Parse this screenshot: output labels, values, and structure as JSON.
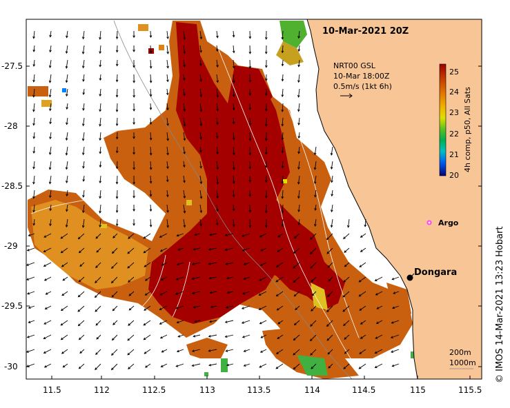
{
  "map": {
    "title": "10-Mar-2021 20Z",
    "current_info": [
      "NRT00 GSL",
      "10-Mar 18:00Z",
      "0.5m/s (1kt 6h)"
    ],
    "colorbar": {
      "label": "4h comp, p50, All Sats",
      "ticks": [
        "25",
        "24",
        "23",
        "22",
        "21",
        "20"
      ],
      "min": 20,
      "max": 25.4,
      "colors": [
        "#06007a",
        "#0020d0",
        "#0080ff",
        "#00c0c0",
        "#00b050",
        "#30c030",
        "#90d000",
        "#e0e000",
        "#f0b000",
        "#e07000",
        "#c03800",
        "#a00000"
      ]
    },
    "x_ticks": [
      "11.5",
      "112",
      "112.5",
      "113",
      "113.5",
      "114",
      "114.5",
      "115",
      "115.5"
    ],
    "y_ticks": [
      "-27.5",
      "-28",
      "-28.5",
      "-29",
      "-29.5",
      "-30"
    ],
    "lon_range": [
      111.3,
      115.6
    ],
    "lat_range": [
      -30.1,
      -27.1
    ],
    "places": [
      {
        "name": "Dongara",
        "lon": 114.93,
        "lat": -29.26
      }
    ],
    "argo": {
      "label": "Argo",
      "lon": 115.1,
      "lat": -28.9
    },
    "contour_labels": [
      "200m",
      "1000m"
    ],
    "credit": "© IMOS 14-Mar-2021 13:23 Hobart",
    "colors": {
      "land": "#f8c597",
      "coast": "#000000",
      "warm": "#a40000",
      "mid": "#c86010",
      "ocean": "#ffffff"
    }
  }
}
